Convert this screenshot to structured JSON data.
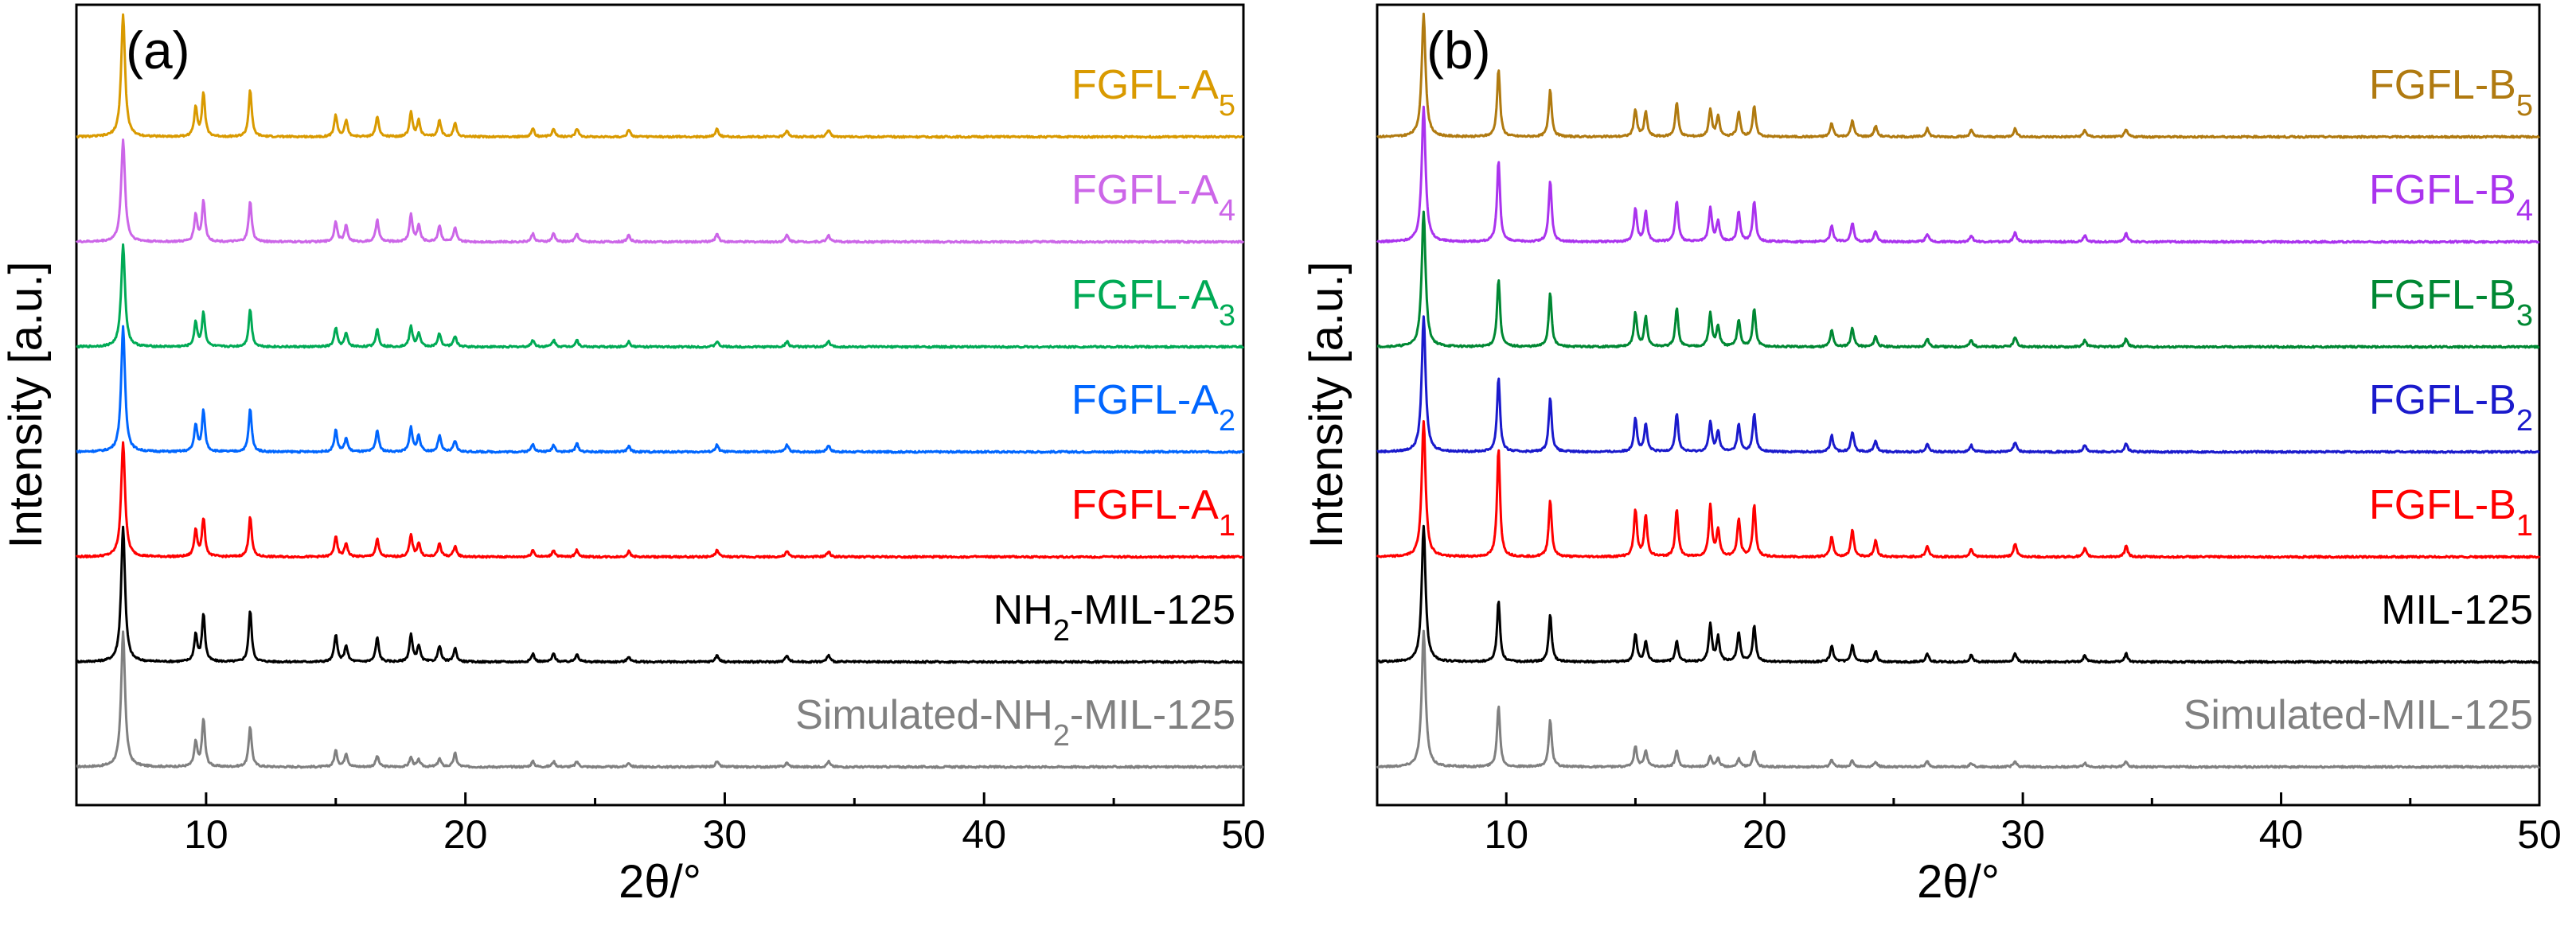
{
  "chart_data": [
    {
      "type": "line",
      "panel_label": "(a)",
      "title": "",
      "xlabel": "2θ/°",
      "ylabel": "Intensity [a.u.]",
      "xlim": [
        5,
        50
      ],
      "xticks": [
        10,
        20,
        30,
        40,
        50
      ],
      "ylim": [
        0,
        7
      ],
      "y_ticks_shown": false,
      "peak_positions_2theta": [
        6.8,
        9.6,
        9.9,
        11.7,
        15.0,
        15.4,
        16.6,
        17.9,
        18.2,
        19.0,
        19.6,
        22.6,
        23.4,
        24.3,
        26.3,
        29.7,
        32.4,
        34.0
      ],
      "series": [
        {
          "name": "Simulated-NH2-MIL-125",
          "label_main": "Simulated-NH",
          "label_sub": "2",
          "label_tail": "-MIL-125",
          "color": "#808080",
          "offset": 0,
          "peak_heights": [
            1.0,
            0.18,
            0.35,
            0.3,
            0.12,
            0.1,
            0.08,
            0.07,
            0.05,
            0.06,
            0.1,
            0.04,
            0.04,
            0.04,
            0.03,
            0.04,
            0.03,
            0.04
          ]
        },
        {
          "name": "NH2-MIL-125",
          "label_main": "NH",
          "label_sub": "2",
          "label_tail": "-MIL-125",
          "color": "#000000",
          "offset": 1,
          "peak_heights": [
            1.0,
            0.2,
            0.35,
            0.38,
            0.2,
            0.12,
            0.18,
            0.2,
            0.12,
            0.12,
            0.1,
            0.06,
            0.06,
            0.06,
            0.04,
            0.05,
            0.05,
            0.05
          ]
        },
        {
          "name": "FGFL-A1",
          "label_main": "FGFL-A",
          "label_sub": "1",
          "label_tail": "",
          "color": "#ff0000",
          "offset": 2,
          "peak_heights": [
            0.85,
            0.2,
            0.28,
            0.3,
            0.15,
            0.1,
            0.13,
            0.16,
            0.1,
            0.1,
            0.08,
            0.05,
            0.05,
            0.05,
            0.04,
            0.05,
            0.04,
            0.04
          ]
        },
        {
          "name": "FGFL-A2",
          "label_main": "FGFL-A",
          "label_sub": "2",
          "label_tail": "",
          "color": "#0066ff",
          "offset": 3,
          "peak_heights": [
            0.92,
            0.2,
            0.3,
            0.32,
            0.16,
            0.1,
            0.16,
            0.18,
            0.12,
            0.12,
            0.08,
            0.06,
            0.05,
            0.06,
            0.04,
            0.05,
            0.05,
            0.05
          ]
        },
        {
          "name": "FGFL-A3",
          "label_main": "FGFL-A",
          "label_sub": "3",
          "label_tail": "",
          "color": "#00aa55",
          "offset": 4,
          "peak_heights": [
            0.75,
            0.18,
            0.25,
            0.28,
            0.14,
            0.1,
            0.13,
            0.15,
            0.1,
            0.1,
            0.08,
            0.05,
            0.05,
            0.05,
            0.04,
            0.04,
            0.04,
            0.04
          ]
        },
        {
          "name": "FGFL-A4",
          "label_main": "FGFL-A",
          "label_sub": "4",
          "label_tail": "",
          "color": "#cc66e8",
          "offset": 5,
          "peak_heights": [
            0.75,
            0.2,
            0.3,
            0.3,
            0.15,
            0.12,
            0.16,
            0.2,
            0.12,
            0.12,
            0.1,
            0.06,
            0.06,
            0.06,
            0.05,
            0.06,
            0.05,
            0.05
          ]
        },
        {
          "name": "FGFL-A5",
          "label_main": "FGFL-A",
          "label_sub": "5",
          "label_tail": "",
          "color": "#d99a00",
          "offset": 6,
          "peak_heights": [
            0.9,
            0.22,
            0.32,
            0.35,
            0.16,
            0.12,
            0.15,
            0.18,
            0.12,
            0.12,
            0.1,
            0.06,
            0.06,
            0.06,
            0.05,
            0.06,
            0.05,
            0.05
          ]
        }
      ]
    },
    {
      "type": "line",
      "panel_label": "(b)",
      "title": "",
      "xlabel": "2θ/°",
      "ylabel": "Intensity [a.u.]",
      "xlim": [
        5,
        50
      ],
      "xticks": [
        10,
        20,
        30,
        40,
        50
      ],
      "ylim": [
        0,
        7
      ],
      "y_ticks_shown": false,
      "peak_positions_2theta": [
        6.8,
        9.7,
        11.7,
        15.0,
        15.4,
        16.6,
        17.9,
        18.2,
        19.0,
        19.6,
        22.6,
        23.4,
        24.3,
        26.3,
        28.0,
        29.7,
        32.4,
        34.0
      ],
      "series": [
        {
          "name": "Simulated-MIL-125",
          "label_main": "Simulated-MIL-125",
          "label_sub": "",
          "label_tail": "",
          "color": "#808080",
          "offset": 0,
          "peak_heights": [
            1.0,
            0.45,
            0.35,
            0.15,
            0.12,
            0.12,
            0.08,
            0.06,
            0.06,
            0.12,
            0.05,
            0.05,
            0.04,
            0.04,
            0.03,
            0.04,
            0.03,
            0.04
          ]
        },
        {
          "name": "MIL-125",
          "label_main": "MIL-125",
          "label_sub": "",
          "label_tail": "",
          "color": "#000000",
          "offset": 1,
          "peak_heights": [
            1.0,
            0.45,
            0.35,
            0.2,
            0.15,
            0.15,
            0.28,
            0.18,
            0.22,
            0.26,
            0.12,
            0.12,
            0.08,
            0.06,
            0.05,
            0.06,
            0.05,
            0.06
          ]
        },
        {
          "name": "FGFL-B1",
          "label_main": "FGFL-B",
          "label_sub": "1",
          "label_tail": "",
          "color": "#ff0000",
          "offset": 2,
          "peak_heights": [
            1.0,
            0.8,
            0.42,
            0.35,
            0.3,
            0.35,
            0.38,
            0.2,
            0.28,
            0.38,
            0.15,
            0.2,
            0.12,
            0.08,
            0.06,
            0.1,
            0.06,
            0.08
          ]
        },
        {
          "name": "FGFL-B2",
          "label_main": "FGFL-B",
          "label_sub": "2",
          "label_tail": "",
          "color": "#1a1acc",
          "offset": 3,
          "peak_heights": [
            1.0,
            0.55,
            0.4,
            0.25,
            0.2,
            0.28,
            0.22,
            0.15,
            0.2,
            0.28,
            0.12,
            0.15,
            0.08,
            0.06,
            0.05,
            0.07,
            0.05,
            0.06
          ]
        },
        {
          "name": "FGFL-B3",
          "label_main": "FGFL-B",
          "label_sub": "3",
          "label_tail": "",
          "color": "#008833",
          "offset": 4,
          "peak_heights": [
            1.0,
            0.5,
            0.4,
            0.25,
            0.22,
            0.28,
            0.25,
            0.15,
            0.2,
            0.28,
            0.12,
            0.14,
            0.08,
            0.06,
            0.05,
            0.07,
            0.05,
            0.06
          ]
        },
        {
          "name": "FGFL-B4",
          "label_main": "FGFL-B",
          "label_sub": "4",
          "label_tail": "",
          "color": "#aa33ee",
          "offset": 5,
          "peak_heights": [
            1.0,
            0.6,
            0.45,
            0.25,
            0.22,
            0.3,
            0.25,
            0.15,
            0.22,
            0.3,
            0.12,
            0.14,
            0.08,
            0.06,
            0.05,
            0.07,
            0.05,
            0.06
          ]
        },
        {
          "name": "FGFL-B5",
          "label_main": "FGFL-B",
          "label_sub": "5",
          "label_tail": "",
          "color": "#b07a10",
          "offset": 6,
          "peak_heights": [
            0.9,
            0.5,
            0.35,
            0.2,
            0.18,
            0.25,
            0.2,
            0.15,
            0.18,
            0.22,
            0.1,
            0.12,
            0.08,
            0.06,
            0.05,
            0.06,
            0.05,
            0.05
          ]
        }
      ]
    }
  ]
}
